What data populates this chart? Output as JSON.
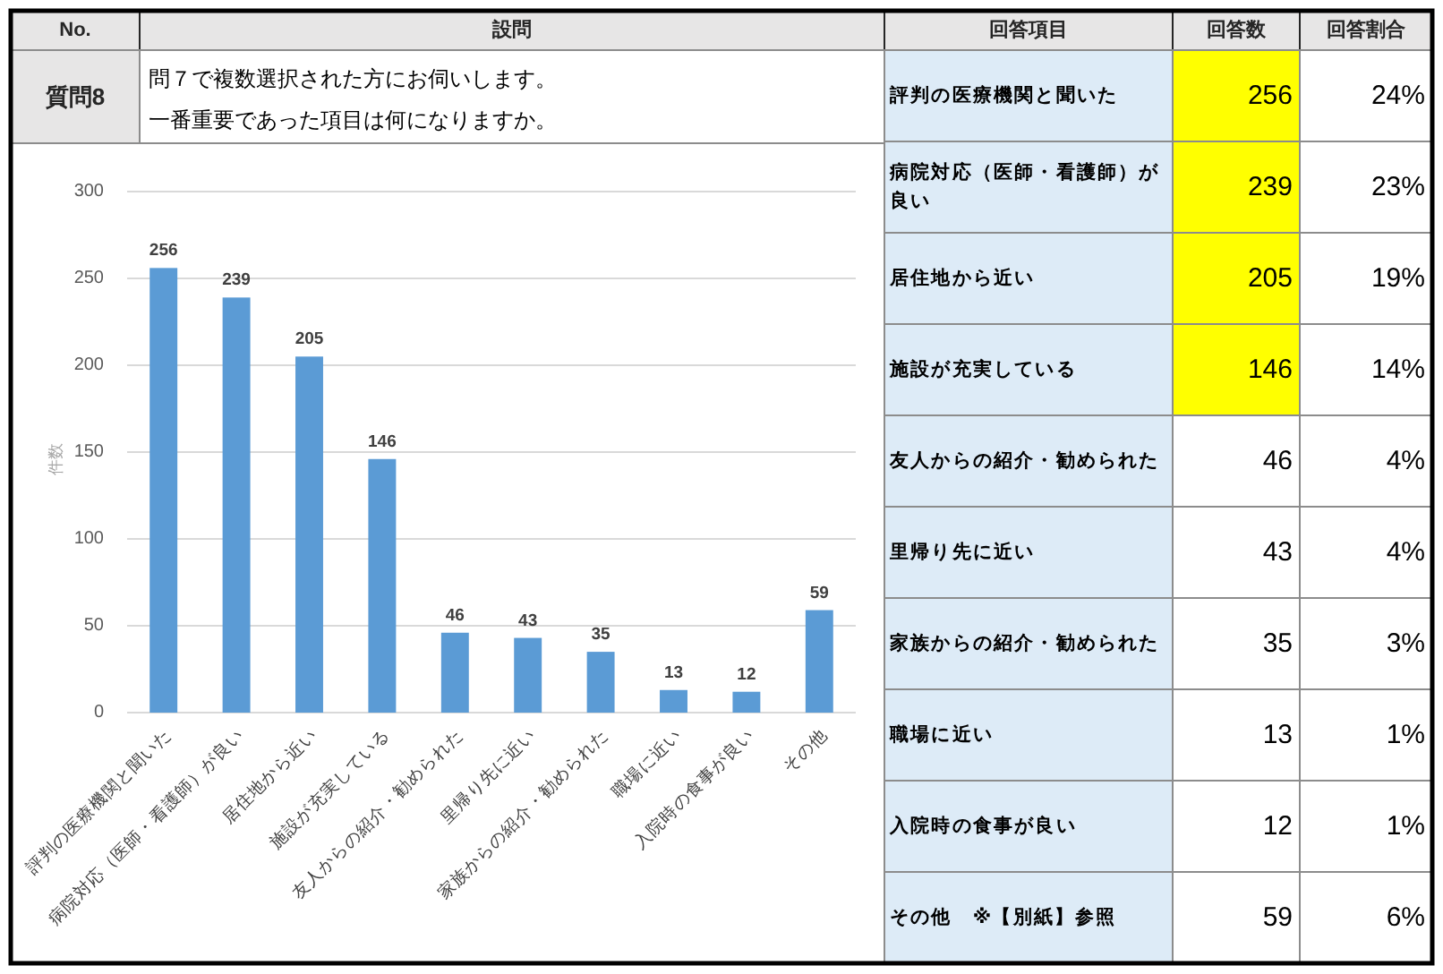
{
  "chart_data": [
    {
      "type": "bar",
      "title": "問７で複数選択された方にお伺いします。",
      "subtitle": "一番重要であった項目は何になりますか。",
      "annotations": [
        "No.",
        "設問",
        "質問8"
      ],
      "ylabel": "件数",
      "categories": [
        "評判の医療機関と聞いた",
        "病院対応（医師・看護師）が良い",
        "居住地から近い",
        "施設が充実している",
        "友人からの紹介・勧められた",
        "里帰り先に近い",
        "家族からの紹介・勧められた",
        "職場に近い",
        "入院時の食事が良い",
        "その他"
      ],
      "values": [
        256,
        239,
        205,
        146,
        46,
        43,
        35,
        13,
        12,
        59
      ],
      "color": "#5b9bd5",
      "ylim": [
        0,
        300
      ],
      "yticks": [
        0,
        50,
        100,
        150,
        200,
        250,
        300
      ],
      "grid": "y",
      "data_labels": true
    },
    {
      "type": "other",
      "annotations": [
        "回答項目"
      ],
      "data_labels": true,
      "categories": [
        "評判の医療機関と聞いた",
        "病院対応（医師・看護師）が良い",
        "居住地から近い",
        "施設が充実している",
        "友人からの紹介・勧められた",
        "里帰り先に近い",
        "家族からの紹介・勧められた",
        "職場に近い",
        "入院時の食事が良い",
        "その他　※【別紙】参照"
      ],
      "series": [
        {
          "name": "回答数",
          "values": [
            256,
            239,
            205,
            146,
            46,
            43,
            35,
            13,
            12,
            59
          ],
          "colors": [
            "#ffff00",
            "#ffff00",
            "#ffff00",
            "#ffff00",
            "#ffffff",
            "#ffffff",
            "#ffffff",
            "#ffffff",
            "#ffffff",
            "#ffffff"
          ]
        },
        {
          "name": "回答割合",
          "values": [
            24,
            23,
            19,
            14,
            4,
            4,
            3,
            1,
            1,
            6
          ],
          "value_labels": [
            "24%",
            "23%",
            "19%",
            "14%",
            "4%",
            "4%",
            "3%",
            "1%",
            "1%",
            "6%"
          ]
        }
      ]
    }
  ]
}
